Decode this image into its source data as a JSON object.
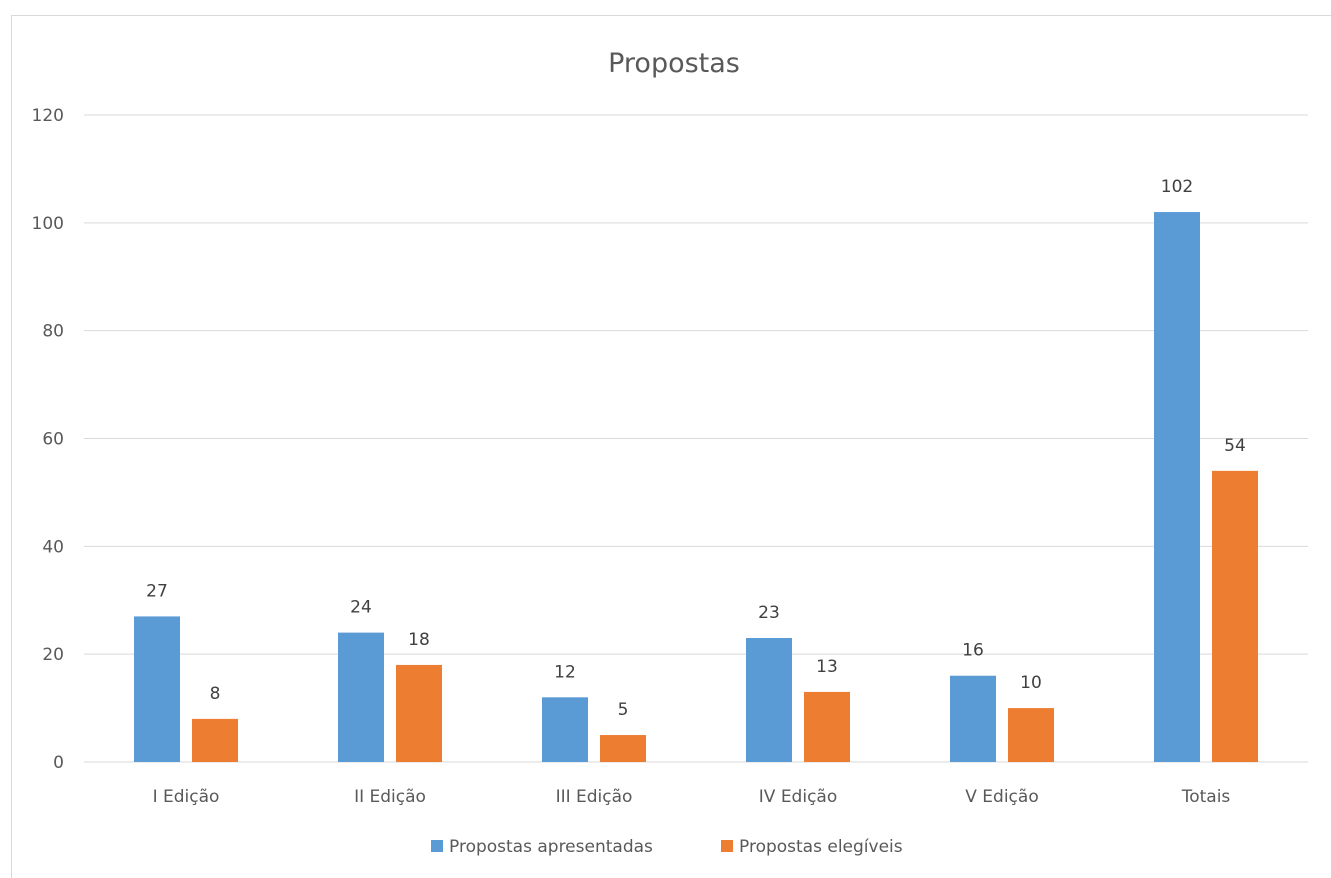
{
  "chart_data": {
    "type": "bar",
    "title": "Propostas",
    "xlabel": "",
    "ylabel": "",
    "categories": [
      "I Edição",
      "II Edição",
      "III Edição",
      "IV Edição",
      "V Edição",
      "Totais"
    ],
    "series": [
      {
        "name": "Propostas apresentadas",
        "color": "#5b9bd5",
        "values": [
          27,
          24,
          12,
          23,
          16,
          102
        ]
      },
      {
        "name": "Propostas elegíveis",
        "color": "#ed7d31",
        "values": [
          8,
          18,
          5,
          13,
          10,
          54
        ]
      }
    ],
    "ylim": [
      0,
      120
    ],
    "yticks": [
      "0",
      "20",
      "40",
      "60",
      "80",
      "100",
      "120"
    ],
    "grid": true,
    "legend_position": "bottom",
    "data_labels": true
  }
}
